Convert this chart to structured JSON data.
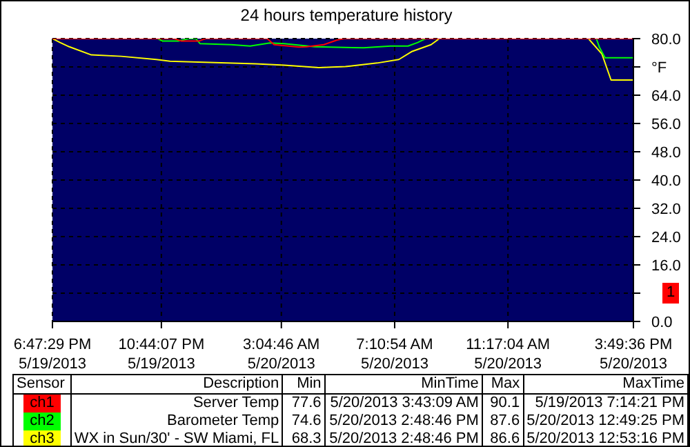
{
  "chart_data": [
    {
      "type": "line",
      "title": "24 hours temperature history",
      "grid": true,
      "marker": "none",
      "line_style": "solid",
      "xlim": [
        "2013-05-19T18:47:29",
        "2013-05-20T15:49:36"
      ],
      "xticks": [
        {
          "value": "2013-05-19T18:47:29",
          "label": "6:47:29 PM\n5/19/2013"
        },
        {
          "value": "2013-05-19T22:44:07",
          "label": "10:44:07 PM\n5/19/2013"
        },
        {
          "value": "2013-05-20T03:04:46",
          "label": "3:04:46 AM\n5/20/2013"
        },
        {
          "value": "2013-05-20T07:10:54",
          "label": "7:10:54 AM\n5/20/2013"
        },
        {
          "value": "2013-05-20T11:17:04",
          "label": "11:17:04 AM\n5/20/2013"
        },
        {
          "value": "2013-05-20T15:49:36",
          "label": "3:49:36 PM\n5/20/2013"
        }
      ],
      "ylim": [
        0,
        80
      ],
      "yticks": [
        {
          "value": 0,
          "label": "0.0"
        },
        {
          "value": 8,
          "label": null
        },
        {
          "value": 16,
          "label": "16.0"
        },
        {
          "value": 24,
          "label": "24.0"
        },
        {
          "value": 32,
          "label": "32.0"
        },
        {
          "value": 40,
          "label": "40.0"
        },
        {
          "value": 48,
          "label": "48.0"
        },
        {
          "value": 56,
          "label": "56.0"
        },
        {
          "value": 64,
          "label": "64.0"
        },
        {
          "value": 72,
          "label": "°F"
        },
        {
          "value": 80,
          "label": "80.0"
        }
      ],
      "annotations": [
        "1"
      ],
      "series": [
        {
          "color": "#ffff00",
          "x": [
            "2013-05-19T18:47:29",
            "2013-05-19T19:04",
            "2013-05-19T19:24",
            "2013-05-19T20:12",
            "2013-05-19T21:17",
            "2013-05-19T22:33",
            "2013-05-19T23:03",
            "2013-05-20T02:09",
            "2013-05-20T03:11",
            "2013-05-20T04:26",
            "2013-05-20T05:24",
            "2013-05-20T06:33",
            "2013-05-20T07:20",
            "2013-05-20T07:49",
            "2013-05-20T08:30",
            "2013-05-20T08:48",
            "2013-05-20T14:12",
            "2013-05-20T14:41",
            "2013-05-20T15:01",
            "2013-05-20T15:49:36"
          ],
          "values": [
            80,
            78.9,
            77.7,
            75.4,
            75.0,
            74.1,
            73.6,
            72.9,
            72.5,
            71.8,
            72.1,
            73.1,
            74.1,
            76.4,
            78.3,
            80,
            80,
            75.7,
            68.3,
            68.3
          ]
        },
        {
          "color": "#00ff00",
          "x": [
            "2013-05-19T22:36",
            "2013-05-19T22:47",
            "2013-05-19T23:21",
            "2013-05-19T23:43",
            "2013-05-19T23:59",
            "2013-05-20T00:08",
            "2013-05-20T01:16",
            "2013-05-20T01:57",
            "2013-05-20T02:40",
            "2013-05-20T03:11",
            "2013-05-20T04:17",
            "2013-05-20T06:04",
            "2013-05-20T07:02",
            "2013-05-20T07:40",
            "2013-05-20T08:01",
            "2013-05-20T08:18",
            "2013-05-20T14:29",
            "2013-05-20T14:36",
            "2013-05-20T14:48",
            "2013-05-20T15:49:36"
          ],
          "values": [
            80,
            79.3,
            79.3,
            80,
            80,
            78.6,
            78.3,
            77.9,
            78.8,
            78.6,
            77.7,
            77.4,
            77.9,
            77.9,
            78.9,
            80,
            80,
            77.5,
            74.6,
            74.6
          ]
        },
        {
          "color": "#ff0000",
          "x": [
            "2013-05-19T18:47:29",
            "2013-05-19T23:12",
            "2013-05-19T23:28",
            "2013-05-20T00:05",
            "2013-05-20T00:20",
            "2013-05-20T02:34",
            "2013-05-20T02:49",
            "2013-05-20T03:43",
            "2013-05-20T04:00",
            "2013-05-20T04:37",
            "2013-05-20T05:06",
            "2013-05-20T05:21",
            "2013-05-20T15:49:36"
          ],
          "values": [
            80,
            80,
            79.3,
            79.3,
            80,
            80,
            78.3,
            77.6,
            77.7,
            78.3,
            79.6,
            80,
            80
          ]
        }
      ]
    },
    {
      "type": "other",
      "categories": [
        "Sensor",
        "Description",
        "Min",
        "MinTime",
        "Max",
        "MaxTime"
      ],
      "y_categories": [
        "ch1",
        "ch2",
        "ch3"
      ],
      "colors": [
        "#ff0000",
        "#00ff00",
        "#ffff00"
      ],
      "cells": [
        [
          "Server Temp",
          "77.6",
          "5/20/2013 3:43:09 AM",
          "90.1",
          "5/19/2013 7:14:21 PM"
        ],
        [
          "Barometer Temp",
          "74.6",
          "5/20/2013 2:48:46 PM",
          "87.6",
          "5/20/2013 12:49:25 PM"
        ],
        [
          "WX in Sun/30' - SW Miami, FL",
          "68.3",
          "5/20/2013 2:48:46 PM",
          "86.6",
          "5/20/2013 12:53:16 PM"
        ]
      ]
    }
  ]
}
